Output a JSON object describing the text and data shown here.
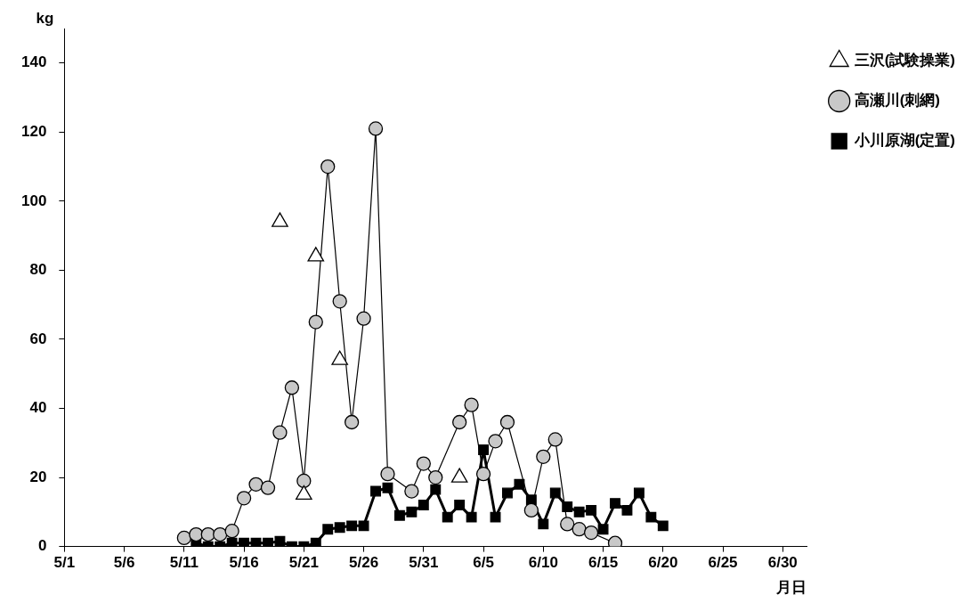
{
  "chart_data": {
    "type": "line",
    "xlabel": "月日",
    "ylabel": "kg",
    "xlim": [
      "--05-01",
      "--07-02"
    ],
    "xticks": [
      {
        "value": "--05-01",
        "label": "5/1"
      },
      {
        "value": "--05-06",
        "label": "5/6"
      },
      {
        "value": "--05-11",
        "label": "5/11"
      },
      {
        "value": "--05-16",
        "label": "5/16"
      },
      {
        "value": "--05-21",
        "label": "5/21"
      },
      {
        "value": "--05-26",
        "label": "5/26"
      },
      {
        "value": "--05-31",
        "label": "5/31"
      },
      {
        "value": "--06-05",
        "label": "6/5"
      },
      {
        "value": "--06-10",
        "label": "6/10"
      },
      {
        "value": "--06-15",
        "label": "6/15"
      },
      {
        "value": "--06-20",
        "label": "6/20"
      },
      {
        "value": "--06-25",
        "label": "6/25"
      },
      {
        "value": "--06-30",
        "label": "6/30"
      }
    ],
    "ylim": [
      0,
      150
    ],
    "yticks": [
      0,
      20,
      40,
      60,
      80,
      100,
      120,
      140
    ],
    "grid": false,
    "legend": "right",
    "series": [
      {
        "name": "三沢(試験操業)",
        "type": "scatter",
        "marker": "triangle",
        "color": "#000000",
        "x": [
          "--05-19",
          "--05-21",
          "--05-22",
          "--05-24",
          "--06-03"
        ],
        "values": [
          94,
          15,
          84,
          54,
          20
        ]
      },
      {
        "name": "高瀬川(刺網)",
        "marker": "circle",
        "color": "#000000",
        "x": [
          "--05-11",
          "--05-12",
          "--05-13",
          "--05-14",
          "--05-15",
          "--05-16",
          "--05-17",
          "--05-18",
          "--05-19",
          "--05-20",
          "--05-21",
          "--05-22",
          "--05-23",
          "--05-24",
          "--05-25",
          "--05-26",
          "--05-27",
          "--05-28",
          "--05-30",
          "--05-31",
          "--06-01",
          "--06-03",
          "--06-04",
          "--06-05",
          "--06-06",
          "--06-07",
          "--06-09",
          "--06-10",
          "--06-11",
          "--06-12",
          "--06-13",
          "--06-14",
          "--06-16"
        ],
        "values": [
          2.5,
          3.5,
          3.5,
          3.5,
          4.5,
          14,
          18,
          17,
          33,
          46,
          19,
          65,
          110,
          71,
          36,
          66,
          121,
          21,
          16,
          24,
          20,
          36,
          41,
          21,
          30.5,
          36,
          10.5,
          26,
          31,
          6.5,
          5,
          4,
          1
        ]
      },
      {
        "name": "小川原湖(定置)",
        "marker": "square",
        "color": "#000000",
        "x": [
          "--05-12",
          "--05-13",
          "--05-14",
          "--05-15",
          "--05-16",
          "--05-17",
          "--05-18",
          "--05-19",
          "--05-20",
          "--05-21",
          "--05-22",
          "--05-23",
          "--05-24",
          "--05-25",
          "--05-26",
          "--05-27",
          "--05-28",
          "--05-29",
          "--05-30",
          "--05-31",
          "--06-01",
          "--06-02",
          "--06-03",
          "--06-04",
          "--06-05",
          "--06-06",
          "--06-07",
          "--06-08",
          "--06-09",
          "--06-10",
          "--06-11",
          "--06-12",
          "--06-13",
          "--06-14",
          "--06-15",
          "--06-16",
          "--06-17",
          "--06-18",
          "--06-19",
          "--06-20"
        ],
        "values": [
          1,
          0,
          0,
          1,
          1,
          1,
          1,
          1.5,
          0,
          0,
          1,
          5,
          5.5,
          6,
          6,
          16,
          17,
          9,
          10,
          12,
          16.5,
          8.5,
          12,
          8.5,
          28,
          8.5,
          15.5,
          18,
          13.5,
          6.5,
          15.5,
          11.5,
          10,
          10.5,
          5,
          12.5,
          10.5,
          15.5,
          8.5,
          6
        ]
      }
    ]
  }
}
